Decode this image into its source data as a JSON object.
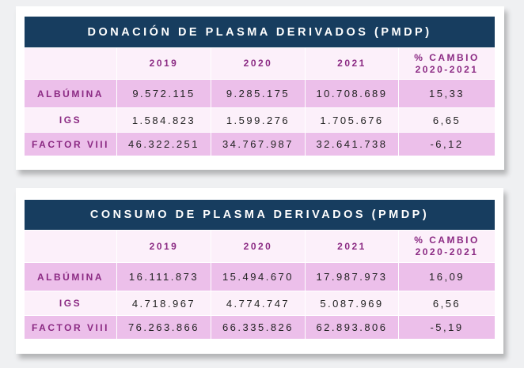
{
  "colors": {
    "header_bg": "#173d5f",
    "row_light": "#fcf0fa",
    "row_dark": "#ecbfea",
    "label_text": "#8b2a83"
  },
  "tables": [
    {
      "title": "DONACIÓN DE PLASMA DERIVADOS (PMDP)",
      "columns": [
        "",
        "2019",
        "2020",
        "2021",
        "% CAMBIO 2020-2021"
      ],
      "rows": [
        {
          "label": "ALBÚMINA",
          "values": [
            "9.572.115",
            "9.285.175",
            "10.708.689",
            "15,33"
          ]
        },
        {
          "label": "IGS",
          "values": [
            "1.584.823",
            "1.599.276",
            "1.705.676",
            "6,65"
          ]
        },
        {
          "label": "FACTOR VIII",
          "values": [
            "46.322.251",
            "34.767.987",
            "32.641.738",
            "-6,12"
          ]
        }
      ]
    },
    {
      "title": "CONSUMO DE PLASMA DERIVADOS (PMDP)",
      "columns": [
        "",
        "2019",
        "2020",
        "2021",
        "% CAMBIO 2020-2021"
      ],
      "rows": [
        {
          "label": "ALBÚMINA",
          "values": [
            "16.111.873",
            "15.494.670",
            "17.987.973",
            "16,09"
          ]
        },
        {
          "label": "IGS",
          "values": [
            "4.718.967",
            "4.774.747",
            "5.087.969",
            "6,56"
          ]
        },
        {
          "label": "FACTOR VIII",
          "values": [
            "76.263.866",
            "66.335.826",
            "62.893.806",
            "-5,19"
          ]
        }
      ]
    }
  ]
}
